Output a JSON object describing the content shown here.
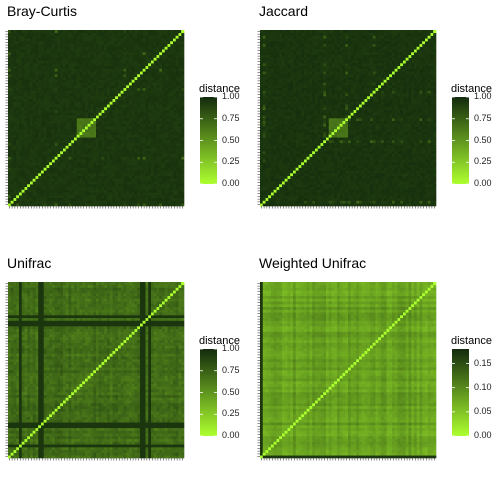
{
  "chart_data": [
    {
      "type": "heatmap",
      "title": "Bray-Curtis",
      "legend_title": "distance",
      "scale_range": [
        0,
        1
      ],
      "legend_ticks": [
        "1.00",
        "0.75",
        "0.50",
        "0.25",
        "0.00"
      ],
      "color_low": "#adff2f",
      "color_high": "#132b0d",
      "diagonal_value": 0,
      "typical_value": 0.97,
      "matrix_size": 64
    },
    {
      "type": "heatmap",
      "title": "Jaccard",
      "legend_title": "distance",
      "scale_range": [
        0,
        1
      ],
      "legend_ticks": [
        "1.00",
        "0.75",
        "0.50",
        "0.25",
        "0.00"
      ],
      "color_low": "#adff2f",
      "color_high": "#132b0d",
      "diagonal_value": 0,
      "typical_value": 0.98,
      "matrix_size": 64
    },
    {
      "type": "heatmap",
      "title": "Unifrac",
      "legend_title": "distance",
      "scale_range": [
        0,
        1
      ],
      "legend_ticks": [
        "1.00",
        "0.75",
        "0.50",
        "0.25",
        "0.00"
      ],
      "color_low": "#adff2f",
      "color_high": "#132b0d",
      "diagonal_value": 0,
      "typical_value": 0.72,
      "matrix_size": 64
    },
    {
      "type": "heatmap",
      "title": "Weighted Unifrac",
      "legend_title": "distance",
      "scale_range": [
        0,
        0.18
      ],
      "legend_ticks": [
        "0.15",
        "0.10",
        "0.05",
        "0.00"
      ],
      "legend_tick_values": [
        0.15,
        0.1,
        0.05,
        0.0
      ],
      "color_low": "#adff2f",
      "color_high": "#132b0d",
      "diagonal_value": 0,
      "typical_value": 0.08,
      "matrix_size": 64
    }
  ]
}
